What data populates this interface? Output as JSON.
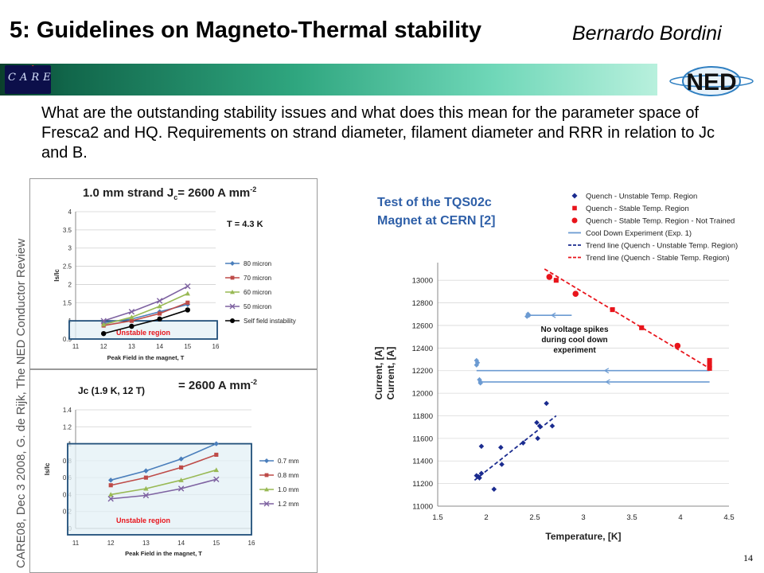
{
  "header": {
    "title": "5: Guidelines on Magneto-Thermal stability",
    "author": "Bernardo Bordini",
    "care_logo_text": "CARE",
    "ned_logo_text": "NED"
  },
  "intro": "What are the outstanding stability issues and what does this mean for the parameter space of Fresca2 and HQ.  Requirements on strand diameter, filament diameter and RRR in relation to Jc and B.",
  "side_caption": "CARE08, Dec 3 2008, G. de Rijk, The NED Conductor Review",
  "page_number": "14",
  "colors": {
    "blue": "#4a7ebb",
    "red": "#be4b48",
    "green": "#98b954",
    "purple": "#7e62a1",
    "black": "#000000",
    "unstable_fill": "#e3f0f6",
    "unstable_border": "#1f4e79",
    "navy": "#1a2b8f",
    "crimson": "#e8141b",
    "steel": "#6c9bd2",
    "title_blue": "#2e5fa8"
  },
  "chart_data": [
    {
      "type": "line",
      "title": "1.0 mm strand J",
      "title_sub": "c",
      "title_tail": "= 2600 A mm",
      "title_sup": "-2",
      "annotation": "T = 4.3 K",
      "xlabel": "Peak Field in the magnet, T",
      "ylabel": "Is/Ic",
      "xlim": [
        11,
        16
      ],
      "ylim": [
        0.5,
        4
      ],
      "xticks": [
        "11",
        "12",
        "13",
        "14",
        "15",
        "16"
      ],
      "yticks": [
        "0.5",
        "1",
        "1.5",
        "2",
        "2.5",
        "3",
        "3.5",
        "4"
      ],
      "x": [
        12,
        13,
        14,
        15
      ],
      "unstable_region": {
        "label": "Unstable region",
        "x": [
          11,
          16
        ],
        "y": [
          0.5,
          1
        ]
      },
      "series": [
        {
          "name": "80 micron",
          "color": "#4a7ebb",
          "marker": "diamond",
          "values": [
            0.95,
            1.05,
            1.25,
            1.45
          ]
        },
        {
          "name": "70 micron",
          "color": "#be4b48",
          "marker": "square",
          "values": [
            0.87,
            1.0,
            1.2,
            1.5
          ]
        },
        {
          "name": "60 micron",
          "color": "#98b954",
          "marker": "triangle",
          "values": [
            0.9,
            1.1,
            1.4,
            1.75
          ]
        },
        {
          "name": "50 micron",
          "color": "#7e62a1",
          "marker": "x",
          "values": [
            1.0,
            1.25,
            1.55,
            1.95
          ]
        },
        {
          "name": "Self field instability",
          "color": "#000000",
          "marker": "circle",
          "values": [
            0.65,
            0.85,
            1.05,
            1.3
          ]
        }
      ]
    },
    {
      "type": "line",
      "title": "Jc (1.9 K, 12 T)",
      "title_tail": "= 2600 A mm",
      "title_sup": "-2",
      "xlabel": "Peak Field in the magnet, T",
      "ylabel": "Is/Ic",
      "xlim": [
        11,
        16
      ],
      "ylim": [
        0,
        1.4
      ],
      "xticks": [
        "11",
        "12",
        "13",
        "14",
        "15",
        "16"
      ],
      "yticks": [
        "0",
        "0.2",
        "0.4",
        "0.6",
        "0.8",
        "1",
        "1.2",
        "1.4"
      ],
      "x": [
        12,
        13,
        14,
        15
      ],
      "unstable_region": {
        "label": "Unstable region",
        "x": [
          11,
          16
        ],
        "y": [
          0,
          1
        ]
      },
      "series": [
        {
          "name": "0.7 mm",
          "color": "#4a7ebb",
          "marker": "diamond",
          "values": [
            0.57,
            0.68,
            0.82,
            1.0
          ]
        },
        {
          "name": "0.8 mm",
          "color": "#be4b48",
          "marker": "square",
          "values": [
            0.51,
            0.6,
            0.72,
            0.87
          ]
        },
        {
          "name": "1.0 mm",
          "color": "#98b954",
          "marker": "triangle",
          "values": [
            0.4,
            0.47,
            0.57,
            0.69
          ]
        },
        {
          "name": "1.2 mm",
          "color": "#7e62a1",
          "marker": "x",
          "values": [
            0.35,
            0.39,
            0.47,
            0.58
          ]
        }
      ]
    },
    {
      "type": "scatter",
      "title": "Test of the TQS02c Magnet at CERN [2]",
      "xlabel": "Temperature, [K]",
      "ylabel": "Current, [A] Current, [A]",
      "ylabel_lines": [
        "Current, [A]",
        "Current, [A]"
      ],
      "xlim": [
        1.5,
        4.5
      ],
      "ylim": [
        11000,
        13100
      ],
      "xticks": [
        "1.5",
        "2",
        "2.5",
        "3",
        "3.5",
        "4",
        "4.5"
      ],
      "yticks": [
        "11000",
        "11200",
        "11400",
        "11600",
        "11800",
        "12000",
        "12200",
        "12400",
        "12600",
        "12800",
        "13000"
      ],
      "annotation": [
        "No voltage spikes",
        "during cool down",
        "experiment"
      ],
      "legend_position": "top-right",
      "series": [
        {
          "name": "Quench - Unstable Temp. Region",
          "color": "#1a2b8f",
          "marker": "diamond",
          "x": [
            1.9,
            1.92,
            1.93,
            1.95,
            1.95,
            2.08,
            2.15,
            2.16,
            2.38,
            2.52,
            2.53,
            2.55,
            2.62,
            2.68
          ],
          "y": [
            11270,
            11260,
            11250,
            11530,
            11290,
            11150,
            11520,
            11370,
            11560,
            11740,
            11600,
            11710,
            11910,
            11710
          ]
        },
        {
          "name": "Quench - Stable Temp. Region",
          "color": "#e8141b",
          "marker": "square",
          "x": [
            2.72,
            3.3,
            3.6,
            4.3,
            4.3,
            4.3
          ],
          "y": [
            13000,
            12740,
            12580,
            12290,
            12250,
            12220
          ]
        },
        {
          "name": "Quench - Stable Temp. Region - Not Trained",
          "color": "#e8141b",
          "marker": "circle",
          "x": [
            2.65,
            2.92,
            3.97
          ],
          "y": [
            13030,
            12880,
            12420
          ]
        },
        {
          "name": "Cool Down Experiment (Exp. 1)",
          "color": "#6c9bd2",
          "marker": "line",
          "segments": [
            {
              "x": [
                2.42,
                2.88
              ],
              "y": [
                12690,
                12690
              ]
            },
            {
              "x": [
                1.9,
                4.3
              ],
              "y": [
                12200,
                12200
              ]
            },
            {
              "x": [
                1.93,
                4.3
              ],
              "y": [
                12100,
                12100
              ]
            }
          ],
          "cluster_points": {
            "x": [
              2.42,
              2.43,
              2.44,
              1.9,
              1.91,
              1.9,
              1.93,
              1.94,
              1.94
            ],
            "y": [
              12680,
              12700,
              12690,
              12290,
              12270,
              12250,
              12120,
              12100,
              12090
            ]
          }
        },
        {
          "name": "Trend line (Quench - Unstable Temp. Region)",
          "color": "#1a2b8f",
          "marker": "dash",
          "x": [
            1.88,
            2.72
          ],
          "y": [
            11230,
            11800
          ]
        },
        {
          "name": "Trend line (Quench - Stable Temp. Region)",
          "color": "#e8141b",
          "marker": "dash",
          "x": [
            2.6,
            4.3
          ],
          "y": [
            13100,
            12220
          ]
        }
      ]
    }
  ]
}
